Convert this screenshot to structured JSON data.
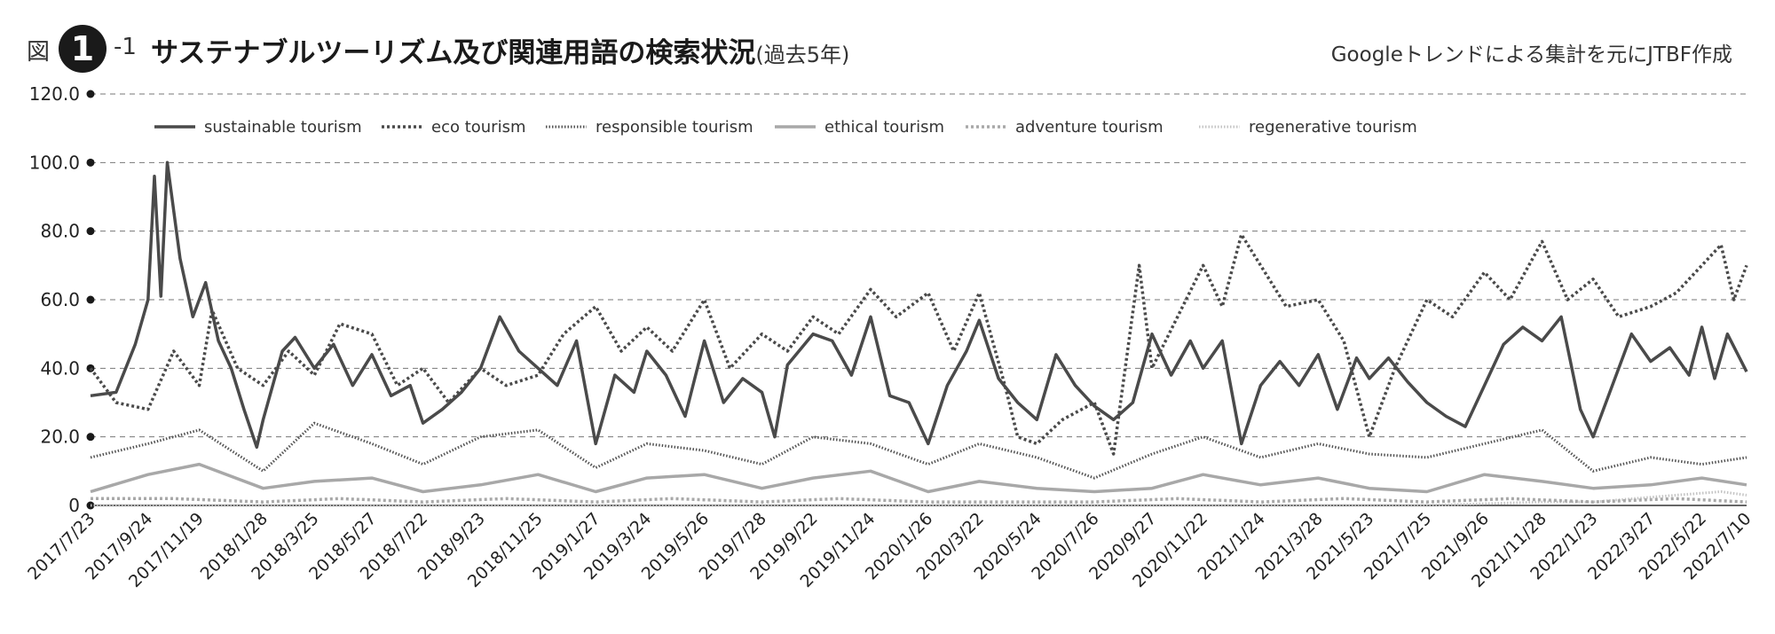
{
  "header": {
    "figure_prefix": "図",
    "figure_number": "1",
    "figure_sub": "-1",
    "title": "サステナブルツーリズム及び関連用語の検索状況",
    "period": "(過去5年)",
    "source": "Googleトレンドによる集計を元にJTBF作成"
  },
  "chart_data": {
    "type": "line",
    "xlabel": "",
    "ylabel": "",
    "ylim": [
      0,
      120
    ],
    "yticks": [
      0,
      20,
      40,
      60,
      80,
      100,
      120
    ],
    "ytick_labels": [
      "0",
      "20.0",
      "40.0",
      "60.0",
      "80.0",
      "100.0",
      "120.0"
    ],
    "x_start": "2017/7/23",
    "x_end": "2022/7/10",
    "x_ticks": [
      "2017/7/23",
      "2017/9/24",
      "2017/11/19",
      "2018/1/28",
      "2018/3/25",
      "2018/5/27",
      "2018/7/22",
      "2018/9/23",
      "2018/11/25",
      "2019/1/27",
      "2019/3/24",
      "2019/5/26",
      "2019/7/28",
      "2019/9/22",
      "2019/11/24",
      "2020/1/26",
      "2020/3/22",
      "2020/5/24",
      "2020/7/26",
      "2020/9/27",
      "2020/11/22",
      "2021/1/24",
      "2021/3/28",
      "2021/5/23",
      "2021/7/25",
      "2021/9/26",
      "2021/11/28",
      "2022/1/23",
      "2022/3/27",
      "2022/5/22",
      "2022/7/10"
    ],
    "grid": "horizontal dashed",
    "legend_position": "top",
    "series": [
      {
        "name": "sustainable tourism",
        "color": "#4a4a4a",
        "style": "solid",
        "points": [
          [
            "2017/7/23",
            32
          ],
          [
            "2017/8/20",
            33
          ],
          [
            "2017/9/10",
            47
          ],
          [
            "2017/9/24",
            60
          ],
          [
            "2017/10/1",
            96
          ],
          [
            "2017/10/8",
            61
          ],
          [
            "2017/10/15",
            100
          ],
          [
            "2017/10/29",
            72
          ],
          [
            "2017/11/12",
            55
          ],
          [
            "2017/11/26",
            65
          ],
          [
            "2017/12/10",
            48
          ],
          [
            "2017/12/24",
            40
          ],
          [
            "2018/1/7",
            28
          ],
          [
            "2018/1/21",
            17
          ],
          [
            "2018/1/28",
            25
          ],
          [
            "2018/2/18",
            45
          ],
          [
            "2018/3/4",
            49
          ],
          [
            "2018/3/25",
            40
          ],
          [
            "2018/4/15",
            47
          ],
          [
            "2018/5/6",
            35
          ],
          [
            "2018/5/27",
            44
          ],
          [
            "2018/6/17",
            32
          ],
          [
            "2018/7/8",
            35
          ],
          [
            "2018/7/22",
            24
          ],
          [
            "2018/8/12",
            28
          ],
          [
            "2018/9/2",
            33
          ],
          [
            "2018/9/23",
            40
          ],
          [
            "2018/10/14",
            55
          ],
          [
            "2018/11/4",
            45
          ],
          [
            "2018/11/25",
            40
          ],
          [
            "2018/12/16",
            35
          ],
          [
            "2019/1/6",
            48
          ],
          [
            "2019/1/27",
            18
          ],
          [
            "2019/2/17",
            38
          ],
          [
            "2019/3/10",
            33
          ],
          [
            "2019/3/24",
            45
          ],
          [
            "2019/4/14",
            38
          ],
          [
            "2019/5/5",
            26
          ],
          [
            "2019/5/26",
            48
          ],
          [
            "2019/6/16",
            30
          ],
          [
            "2019/7/7",
            37
          ],
          [
            "2019/7/28",
            33
          ],
          [
            "2019/8/11",
            20
          ],
          [
            "2019/8/25",
            41
          ],
          [
            "2019/9/22",
            50
          ],
          [
            "2019/10/13",
            48
          ],
          [
            "2019/11/3",
            38
          ],
          [
            "2019/11/24",
            55
          ],
          [
            "2019/12/15",
            32
          ],
          [
            "2020/1/5",
            30
          ],
          [
            "2020/1/26",
            18
          ],
          [
            "2020/2/16",
            35
          ],
          [
            "2020/3/8",
            45
          ],
          [
            "2020/3/22",
            54
          ],
          [
            "2020/4/12",
            37
          ],
          [
            "2020/5/3",
            30
          ],
          [
            "2020/5/24",
            25
          ],
          [
            "2020/6/14",
            44
          ],
          [
            "2020/7/5",
            35
          ],
          [
            "2020/7/26",
            29
          ],
          [
            "2020/8/16",
            25
          ],
          [
            "2020/9/6",
            30
          ],
          [
            "2020/9/27",
            50
          ],
          [
            "2020/10/18",
            38
          ],
          [
            "2020/11/8",
            48
          ],
          [
            "2020/11/22",
            40
          ],
          [
            "2020/12/13",
            48
          ],
          [
            "2021/1/3",
            18
          ],
          [
            "2021/1/24",
            35
          ],
          [
            "2021/2/14",
            42
          ],
          [
            "2021/3/7",
            35
          ],
          [
            "2021/3/28",
            44
          ],
          [
            "2021/4/18",
            28
          ],
          [
            "2021/5/9",
            43
          ],
          [
            "2021/5/23",
            37
          ],
          [
            "2021/6/13",
            43
          ],
          [
            "2021/7/4",
            36
          ],
          [
            "2021/7/25",
            30
          ],
          [
            "2021/8/15",
            26
          ],
          [
            "2021/9/5",
            23
          ],
          [
            "2021/9/26",
            35
          ],
          [
            "2021/10/17",
            47
          ],
          [
            "2021/11/7",
            52
          ],
          [
            "2021/11/28",
            48
          ],
          [
            "2021/12/19",
            55
          ],
          [
            "2022/1/9",
            28
          ],
          [
            "2022/1/23",
            20
          ],
          [
            "2022/2/13",
            35
          ],
          [
            "2022/3/6",
            50
          ],
          [
            "2022/3/27",
            42
          ],
          [
            "2022/4/17",
            46
          ],
          [
            "2022/5/8",
            38
          ],
          [
            "2022/5/22",
            52
          ],
          [
            "2022/6/5",
            37
          ],
          [
            "2022/6/19",
            50
          ],
          [
            "2022/7/10",
            39
          ]
        ]
      },
      {
        "name": "eco tourism",
        "color": "#4a4a4a",
        "style": "dotted",
        "points": [
          [
            "2017/7/23",
            40
          ],
          [
            "2017/8/20",
            30
          ],
          [
            "2017/9/24",
            28
          ],
          [
            "2017/10/22",
            45
          ],
          [
            "2017/11/19",
            35
          ],
          [
            "2017/12/3",
            57
          ],
          [
            "2017/12/31",
            40
          ],
          [
            "2018/1/28",
            35
          ],
          [
            "2018/2/25",
            45
          ],
          [
            "2018/3/25",
            38
          ],
          [
            "2018/4/22",
            53
          ],
          [
            "2018/5/27",
            50
          ],
          [
            "2018/6/24",
            35
          ],
          [
            "2018/7/22",
            40
          ],
          [
            "2018/8/19",
            30
          ],
          [
            "2018/9/23",
            40
          ],
          [
            "2018/10/21",
            35
          ],
          [
            "2018/11/25",
            38
          ],
          [
            "2018/12/23",
            50
          ],
          [
            "2019/1/27",
            58
          ],
          [
            "2019/2/24",
            45
          ],
          [
            "2019/3/24",
            52
          ],
          [
            "2019/4/21",
            45
          ],
          [
            "2019/5/26",
            60
          ],
          [
            "2019/6/23",
            40
          ],
          [
            "2019/7/28",
            50
          ],
          [
            "2019/8/25",
            45
          ],
          [
            "2019/9/22",
            55
          ],
          [
            "2019/10/20",
            50
          ],
          [
            "2019/11/24",
            63
          ],
          [
            "2019/12/22",
            55
          ],
          [
            "2020/1/26",
            62
          ],
          [
            "2020/2/23",
            45
          ],
          [
            "2020/3/22",
            62
          ],
          [
            "2020/4/19",
            35
          ],
          [
            "2020/5/3",
            20
          ],
          [
            "2020/5/24",
            18
          ],
          [
            "2020/6/21",
            25
          ],
          [
            "2020/7/26",
            30
          ],
          [
            "2020/8/16",
            15
          ],
          [
            "2020/9/13",
            70
          ],
          [
            "2020/9/27",
            40
          ],
          [
            "2020/10/25",
            55
          ],
          [
            "2020/11/22",
            70
          ],
          [
            "2020/12/13",
            58
          ],
          [
            "2021/1/3",
            79
          ],
          [
            "2021/1/24",
            70
          ],
          [
            "2021/2/21",
            58
          ],
          [
            "2021/3/28",
            60
          ],
          [
            "2021/4/25",
            48
          ],
          [
            "2021/5/23",
            20
          ],
          [
            "2021/6/20",
            40
          ],
          [
            "2021/7/25",
            60
          ],
          [
            "2021/8/22",
            55
          ],
          [
            "2021/9/26",
            68
          ],
          [
            "2021/10/24",
            60
          ],
          [
            "2021/11/28",
            77
          ],
          [
            "2021/12/26",
            60
          ],
          [
            "2022/1/23",
            66
          ],
          [
            "2022/2/20",
            55
          ],
          [
            "2022/3/27",
            58
          ],
          [
            "2022/4/24",
            62
          ],
          [
            "2022/5/22",
            70
          ],
          [
            "2022/6/12",
            76
          ],
          [
            "2022/6/26",
            60
          ],
          [
            "2022/7/10",
            70
          ]
        ]
      },
      {
        "name": "responsible tourism",
        "color": "#555555",
        "style": "fine-dotted",
        "points": [
          [
            "2017/7/23",
            14
          ],
          [
            "2017/9/24",
            18
          ],
          [
            "2017/11/19",
            22
          ],
          [
            "2018/1/28",
            10
          ],
          [
            "2018/3/25",
            24
          ],
          [
            "2018/5/27",
            18
          ],
          [
            "2018/7/22",
            12
          ],
          [
            "2018/9/23",
            20
          ],
          [
            "2018/11/25",
            22
          ],
          [
            "2019/1/27",
            11
          ],
          [
            "2019/3/24",
            18
          ],
          [
            "2019/5/26",
            16
          ],
          [
            "2019/7/28",
            12
          ],
          [
            "2019/9/22",
            20
          ],
          [
            "2019/11/24",
            18
          ],
          [
            "2020/1/26",
            12
          ],
          [
            "2020/3/22",
            18
          ],
          [
            "2020/5/24",
            14
          ],
          [
            "2020/7/26",
            8
          ],
          [
            "2020/9/27",
            15
          ],
          [
            "2020/11/22",
            20
          ],
          [
            "2021/1/24",
            14
          ],
          [
            "2021/3/28",
            18
          ],
          [
            "2021/5/23",
            15
          ],
          [
            "2021/7/25",
            14
          ],
          [
            "2021/9/26",
            18
          ],
          [
            "2021/11/28",
            22
          ],
          [
            "2022/1/23",
            10
          ],
          [
            "2022/3/27",
            14
          ],
          [
            "2022/5/22",
            12
          ],
          [
            "2022/7/10",
            14
          ]
        ]
      },
      {
        "name": "ethical tourism",
        "color": "#a8a8a8",
        "style": "solid",
        "points": [
          [
            "2017/7/23",
            4
          ],
          [
            "2017/9/24",
            9
          ],
          [
            "2017/11/19",
            12
          ],
          [
            "2018/1/28",
            5
          ],
          [
            "2018/3/25",
            7
          ],
          [
            "2018/5/27",
            8
          ],
          [
            "2018/7/22",
            4
          ],
          [
            "2018/9/23",
            6
          ],
          [
            "2018/11/25",
            9
          ],
          [
            "2019/1/27",
            4
          ],
          [
            "2019/3/24",
            8
          ],
          [
            "2019/5/26",
            9
          ],
          [
            "2019/7/28",
            5
          ],
          [
            "2019/9/22",
            8
          ],
          [
            "2019/11/24",
            10
          ],
          [
            "2020/1/26",
            4
          ],
          [
            "2020/3/22",
            7
          ],
          [
            "2020/5/24",
            5
          ],
          [
            "2020/7/26",
            4
          ],
          [
            "2020/9/27",
            5
          ],
          [
            "2020/11/22",
            9
          ],
          [
            "2021/1/24",
            6
          ],
          [
            "2021/3/28",
            8
          ],
          [
            "2021/5/23",
            5
          ],
          [
            "2021/7/25",
            4
          ],
          [
            "2021/9/26",
            9
          ],
          [
            "2021/11/28",
            7
          ],
          [
            "2022/1/23",
            5
          ],
          [
            "2022/3/27",
            6
          ],
          [
            "2022/5/22",
            8
          ],
          [
            "2022/7/10",
            6
          ]
        ]
      },
      {
        "name": "adventure tourism",
        "color": "#a8a8a8",
        "style": "dotted",
        "points": [
          [
            "2017/7/23",
            2
          ],
          [
            "2017/10/22",
            2
          ],
          [
            "2018/1/28",
            1
          ],
          [
            "2018/4/22",
            2
          ],
          [
            "2018/7/22",
            1
          ],
          [
            "2018/10/21",
            2
          ],
          [
            "2019/1/27",
            1
          ],
          [
            "2019/4/21",
            2
          ],
          [
            "2019/7/28",
            1
          ],
          [
            "2019/10/20",
            2
          ],
          [
            "2020/1/26",
            1
          ],
          [
            "2020/4/19",
            1
          ],
          [
            "2020/7/26",
            1
          ],
          [
            "2020/10/25",
            2
          ],
          [
            "2021/1/24",
            1
          ],
          [
            "2021/4/25",
            2
          ],
          [
            "2021/7/25",
            1
          ],
          [
            "2021/10/24",
            2
          ],
          [
            "2022/1/23",
            1
          ],
          [
            "2022/4/24",
            2
          ],
          [
            "2022/7/10",
            1
          ]
        ]
      },
      {
        "name": "regenerative tourism",
        "color": "#c4c4c4",
        "style": "fine-dotted",
        "points": [
          [
            "2017/7/23",
            0
          ],
          [
            "2018/7/22",
            0
          ],
          [
            "2019/7/28",
            0
          ],
          [
            "2020/7/26",
            0
          ],
          [
            "2021/1/24",
            0
          ],
          [
            "2021/7/25",
            0
          ],
          [
            "2021/11/28",
            1
          ],
          [
            "2022/1/23",
            1
          ],
          [
            "2022/4/24",
            3
          ],
          [
            "2022/6/12",
            4
          ],
          [
            "2022/7/10",
            3
          ]
        ]
      }
    ]
  }
}
